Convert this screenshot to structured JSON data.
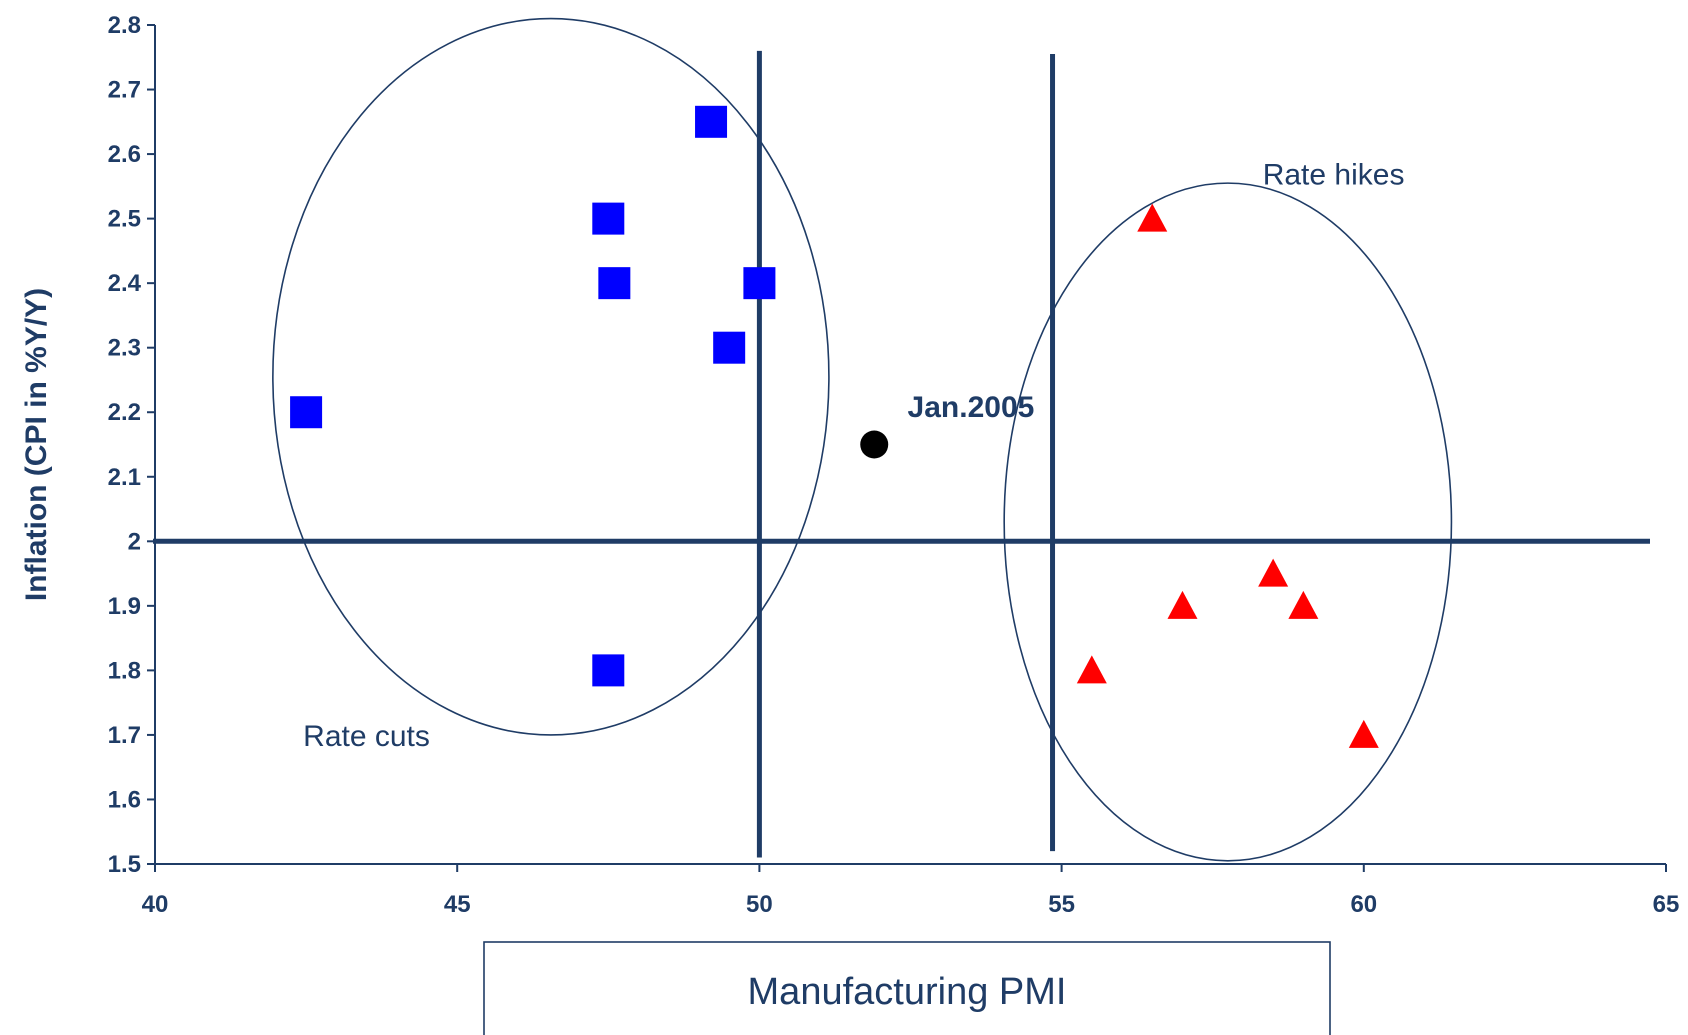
{
  "chart_data": {
    "type": "scatter",
    "title": "",
    "xlabel": "Manufacturing PMI",
    "ylabel": "Inflation (CPI in %Y/Y)",
    "xlim": [
      40,
      65
    ],
    "ylim": [
      1.5,
      2.8
    ],
    "xticks": [
      "40",
      "45",
      "50",
      "55",
      "60",
      "65"
    ],
    "yticks": [
      "1.5",
      "1.6",
      "1.7",
      "1.8",
      "1.9",
      "2",
      "2.1",
      "2.2",
      "2.3",
      "2.4",
      "2.5",
      "2.6",
      "2.7",
      "2.8"
    ],
    "grid": false,
    "series": [
      {
        "marker": "square",
        "color": "#0000ff",
        "points": [
          {
            "x": 42.5,
            "y": 2.2
          },
          {
            "x": 47.5,
            "y": 2.5
          },
          {
            "x": 47.6,
            "y": 2.4
          },
          {
            "x": 49.2,
            "y": 2.65
          },
          {
            "x": 50.0,
            "y": 2.4
          },
          {
            "x": 49.5,
            "y": 2.3
          },
          {
            "x": 47.5,
            "y": 1.8
          }
        ]
      },
      {
        "marker": "triangle",
        "color": "#ff0000",
        "points": [
          {
            "x": 56.5,
            "y": 2.5
          },
          {
            "x": 55.5,
            "y": 1.8
          },
          {
            "x": 57.0,
            "y": 1.9
          },
          {
            "x": 58.5,
            "y": 1.95
          },
          {
            "x": 59.0,
            "y": 1.9
          },
          {
            "x": 60.0,
            "y": 1.7
          }
        ]
      },
      {
        "marker": "circle",
        "color": "#000000",
        "points": [
          {
            "x": 51.9,
            "y": 2.15
          }
        ]
      }
    ],
    "reference_lines": [
      {
        "orientation": "horizontal",
        "y": 2.0
      },
      {
        "orientation": "vertical",
        "x": 50.0
      },
      {
        "orientation": "vertical",
        "x": 54.85
      }
    ],
    "regions": [
      {
        "label": "Rate cuts",
        "cx": 46.55,
        "cy": 2.255,
        "rx": 4.6,
        "ry": 0.555
      },
      {
        "label": "Rate hikes",
        "cx": 57.75,
        "cy": 2.03,
        "rx": 3.7,
        "ry": 0.525
      }
    ],
    "annotations": [
      {
        "text": "Jan.2005",
        "x": 53.5,
        "y": 2.21
      }
    ]
  }
}
